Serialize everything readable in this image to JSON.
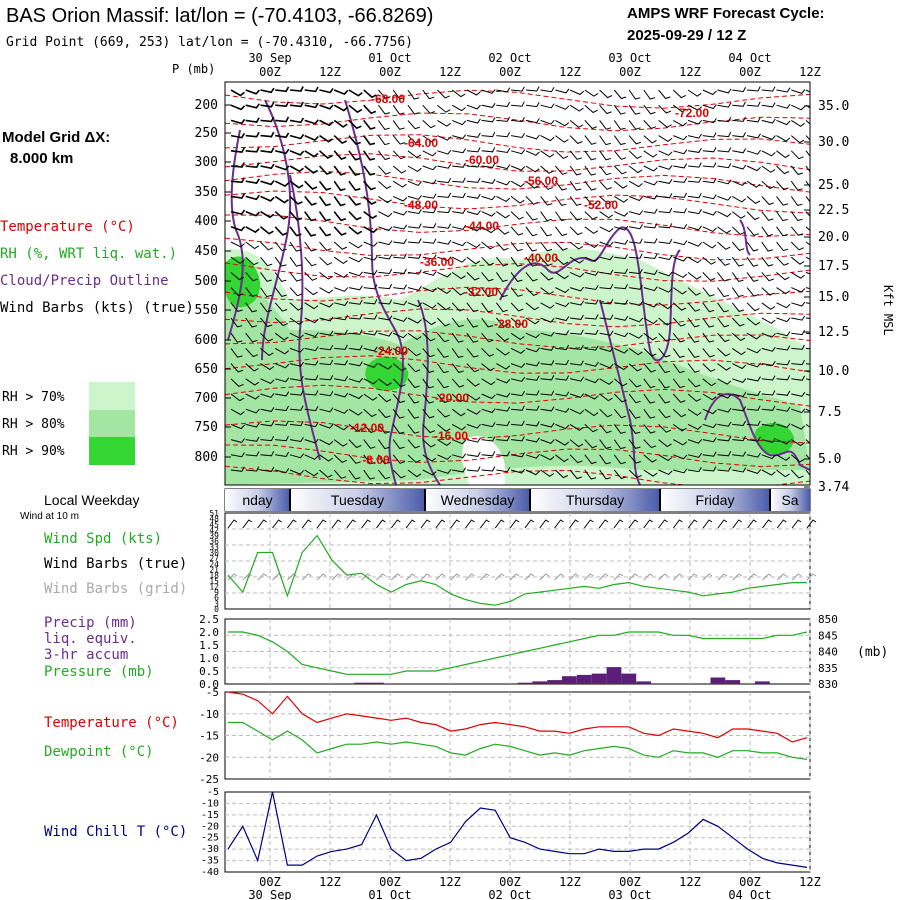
{
  "header": {
    "title": "BAS Orion Massif:  lat/lon = (-70.4103, -66.8269)",
    "subtitle": "Grid Point (669, 253) lat/lon = (-70.4310, -66.7756)",
    "cycle_label": "AMPS WRF Forecast Cycle:",
    "cycle_value": "2025-09-29 / 12  Z"
  },
  "time_axis": {
    "ticks": [
      "00Z",
      "12Z",
      "00Z",
      "12Z",
      "00Z",
      "12Z",
      "00Z",
      "12Z",
      "00Z",
      "12Z"
    ],
    "dates": [
      "30 Sep",
      "01 Oct",
      "02 Oct",
      "03 Oct",
      "04 Oct"
    ]
  },
  "left_panel": {
    "model_grid_label": "Model Grid ΔX:",
    "model_grid_value": "8.000 km",
    "p_label": "P (mb)",
    "legend_temperature": "Temperature (°C)",
    "legend_rh": "RH (%, WRT liq. wat.)",
    "legend_cloud": "Cloud/Precip Outline",
    "legend_wind": "Wind Barbs (kts) (true)",
    "rh_keys": [
      "RH > 70%",
      "RH > 80%",
      "RH > 90%"
    ],
    "colors": {
      "temp": "#dd0000",
      "rh": "#22aa22",
      "cloud": "#6a2d8c",
      "wind": "#000000",
      "rh70": "#ccf5cc",
      "rh80": "#a3e6a3",
      "rh90": "#33d633"
    }
  },
  "right_axis": {
    "unit": "Kft MSL"
  },
  "weekday_bar": {
    "label": "Local Weekday",
    "days": [
      "nday",
      "Tuesday",
      "Wednesday",
      "Thursday",
      "Friday",
      "Sa"
    ]
  },
  "wind_panel": {
    "sub_label": "Wind at 10 m",
    "label_speed": "Wind Spd (kts)",
    "label_barbs_true": "Wind Barbs (true)",
    "label_barbs_grid": "Wind Barbs (grid)"
  },
  "precip_panel": {
    "label_precip": "Precip (mm)",
    "label_liq": "liq. equiv.",
    "label_accum": "3-hr accum",
    "label_pressure": "Pressure (mb)",
    "right_unit": "(mb)"
  },
  "temp_panel": {
    "label_temp": "Temperature (°C)",
    "label_dew": "Dewpoint (°C)"
  },
  "chill_panel": {
    "label": "Wind Chill T (°C)"
  },
  "chart_data": [
    {
      "type": "heatmap",
      "yaxis_label": "P (mb)",
      "y_ticks": [
        "200",
        "250",
        "300",
        "350",
        "400",
        "450",
        "500",
        "550",
        "600",
        "650",
        "700",
        "750",
        "800"
      ],
      "y2_ticks": [
        "35.0",
        "30.0",
        "25.0",
        "22.5",
        "20.0",
        "17.5",
        "15.0",
        "12.5",
        "10.0",
        "7.5",
        "5.0",
        "3.74"
      ],
      "y2_label": "Kft MSL",
      "temperature_contour_labels": [
        "-68.00",
        "-72.00",
        "-64.00",
        "-60.00",
        "-56.00",
        "-52.00",
        "-48.00",
        "-44.00",
        "-40.00",
        "-36.00",
        "-32.00",
        "-28.00",
        "-24.00",
        "-20.00",
        "-16.00",
        "-12.00",
        "-8.00"
      ],
      "rh_thresholds": [
        "RH > 70%",
        "RH > 80%",
        "RH > 90%"
      ]
    },
    {
      "type": "line",
      "series": [
        {
          "name": "Wind Spd (kts)",
          "values": [
            18,
            9,
            30,
            30,
            7,
            30,
            39,
            26,
            18,
            19,
            13,
            9,
            13,
            15,
            13,
            8,
            5,
            3,
            2,
            4,
            8,
            9,
            10,
            11,
            12,
            11,
            13,
            14,
            12,
            11,
            10,
            9,
            7,
            8,
            9,
            11,
            12,
            13,
            14,
            14
          ]
        }
      ],
      "y_ticks": [
        "51",
        "48",
        "45",
        "42",
        "39",
        "36",
        "33",
        "30",
        "27",
        "24",
        "21",
        "18",
        "15",
        "12",
        "9",
        "6",
        "3",
        "0"
      ],
      "ylim": [
        0,
        51
      ]
    },
    {
      "type": "bar",
      "series": [
        {
          "name": "Precip (mm)",
          "values": [
            0,
            0,
            0,
            0,
            0,
            0,
            0,
            0,
            0,
            0.05,
            0.05,
            0,
            0,
            0,
            0,
            0,
            0,
            0,
            0,
            0,
            0.05,
            0.1,
            0.15,
            0.3,
            0.35,
            0.4,
            0.65,
            0.4,
            0.1,
            0,
            0,
            0,
            0,
            0.25,
            0.15,
            0,
            0.1,
            0,
            0,
            0
          ]
        },
        {
          "name": "Pressure (mb)",
          "values": [
            846,
            846,
            845,
            843,
            840,
            836,
            835,
            834,
            833,
            833,
            833,
            833,
            834,
            834,
            834,
            835,
            836,
            837,
            838,
            839,
            840,
            841,
            842,
            843,
            844,
            845,
            845,
            846,
            846,
            846,
            845,
            845,
            844,
            844,
            844,
            844,
            844,
            845,
            845,
            846
          ]
        }
      ],
      "y_ticks": [
        "2.5",
        "2.0",
        "1.5",
        "1.0",
        "0.5",
        "0.0"
      ],
      "y2_ticks": [
        "850",
        "845",
        "840",
        "835",
        "830"
      ],
      "ylim": [
        0,
        2.5
      ],
      "y2lim": [
        830,
        850
      ]
    },
    {
      "type": "line",
      "series": [
        {
          "name": "Temperature (°C)",
          "values": [
            -5,
            -5.5,
            -7,
            -10,
            -6,
            -10,
            -12,
            -11,
            -10,
            -10.5,
            -11,
            -11.5,
            -11,
            -12,
            -12.5,
            -14,
            -13.5,
            -12.5,
            -12,
            -12.5,
            -13,
            -14,
            -14,
            -14.5,
            -13.5,
            -13,
            -13,
            -13,
            -14.5,
            -15,
            -13.5,
            -14,
            -14.5,
            -15.5,
            -13.5,
            -13.5,
            -14,
            -14.5,
            -16.5,
            -15.5
          ]
        },
        {
          "name": "Dewpoint (°C)",
          "values": [
            -12,
            -12,
            -14,
            -16,
            -14,
            -16,
            -19,
            -18,
            -17,
            -17,
            -16.5,
            -17,
            -16.5,
            -17,
            -17.5,
            -19,
            -19.5,
            -18,
            -17,
            -17.5,
            -18.5,
            -19.5,
            -19,
            -19.5,
            -18.5,
            -18,
            -17.5,
            -18,
            -19.5,
            -20,
            -18.5,
            -19,
            -19,
            -20,
            -18.5,
            -18.5,
            -19,
            -19,
            -20,
            -20.5
          ]
        }
      ],
      "y_ticks": [
        "-5",
        "-10",
        "-15",
        "-20",
        "-25"
      ],
      "ylim": [
        -25,
        -5
      ]
    },
    {
      "type": "line",
      "series": [
        {
          "name": "Wind Chill T (°C)",
          "values": [
            -30,
            -20,
            -35,
            -5,
            -37,
            -37,
            -33,
            -31,
            -30,
            -28,
            -15,
            -30,
            -35,
            -34,
            -30,
            -27,
            -18,
            -12,
            -13,
            -25,
            -27,
            -30,
            -31,
            -32,
            -32,
            -30,
            -31,
            -31,
            -30,
            -30,
            -27,
            -23,
            -17,
            -20,
            -25,
            -30,
            -34,
            -36,
            -37,
            -38
          ]
        }
      ],
      "y_ticks": [
        "-5",
        "-10",
        "-15",
        "-20",
        "-25",
        "-30",
        "-35",
        "-40"
      ],
      "ylim": [
        -40,
        -5
      ]
    }
  ]
}
